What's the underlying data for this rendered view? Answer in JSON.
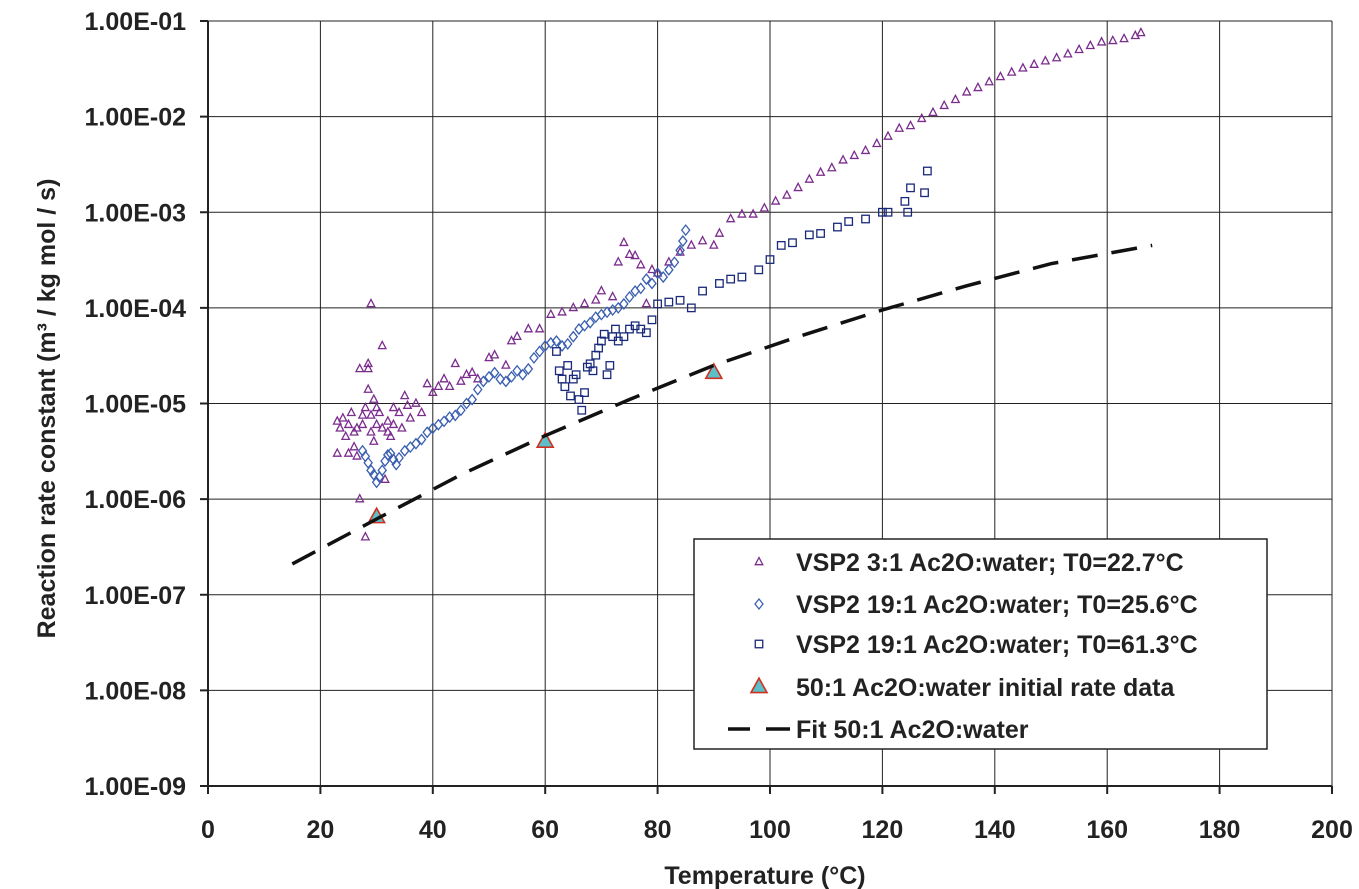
{
  "chart_data": {
    "type": "scatter",
    "title": "",
    "xlabel": "Temperature (°C)",
    "ylabel": "Reaction rate constant (m³ / kg mol / s)",
    "xlim": [
      0,
      200
    ],
    "ylim": [
      1e-09,
      0.1
    ],
    "yscale": "log",
    "x_ticks": [
      0,
      20,
      40,
      60,
      80,
      100,
      120,
      140,
      160,
      180,
      200
    ],
    "x_tick_labels": [
      "0",
      "20",
      "40",
      "60",
      "80",
      "100",
      "120",
      "140",
      "160",
      "180",
      "200"
    ],
    "y_ticks": [
      1e-09,
      1e-08,
      1e-07,
      1e-06,
      1e-05,
      0.0001,
      0.001,
      0.01,
      0.1
    ],
    "y_tick_labels": [
      "1.00E-09",
      "1.00E-08",
      "1.00E-07",
      "1.00E-06",
      "1.00E-05",
      "1.00E-04",
      "1.00E-03",
      "1.00E-02",
      "1.00E-01"
    ],
    "grid": true,
    "legend_position": "bottom-right",
    "series": [
      {
        "name": "VSP2 3:1 Ac2O:water; T0=22.7°C",
        "marker": "triangle-open",
        "color": "#7b2d8e",
        "points": [
          [
            23,
            3e-06
          ],
          [
            23,
            6.5e-06
          ],
          [
            23.5,
            5.5e-06
          ],
          [
            24,
            7e-06
          ],
          [
            24.5,
            4.5e-06
          ],
          [
            25,
            3e-06
          ],
          [
            25,
            6e-06
          ],
          [
            25.5,
            8e-06
          ],
          [
            26,
            5e-06
          ],
          [
            26,
            3.5e-06
          ],
          [
            26.5,
            2.8e-06
          ],
          [
            26.5,
            5.5e-06
          ],
          [
            27,
            2.3e-05
          ],
          [
            27,
            1e-06
          ],
          [
            27.5,
            6e-06
          ],
          [
            27.5,
            7.5e-06
          ],
          [
            28,
            4e-07
          ],
          [
            28,
            9e-06
          ],
          [
            28.5,
            2.6e-05
          ],
          [
            28.5,
            2.3e-05
          ],
          [
            28.5,
            1.4e-05
          ],
          [
            29,
            0.00011
          ],
          [
            29,
            5e-06
          ],
          [
            29,
            7.5e-06
          ],
          [
            29.5,
            4e-06
          ],
          [
            29.5,
            1.1e-05
          ],
          [
            30,
            9e-06
          ],
          [
            30,
            6e-06
          ],
          [
            30.5,
            8e-06
          ],
          [
            31,
            4e-05
          ],
          [
            31,
            5.5e-06
          ],
          [
            31.5,
            1.6e-06
          ],
          [
            32,
            5e-06
          ],
          [
            32,
            6.5e-06
          ],
          [
            32.5,
            4.5e-06
          ],
          [
            33,
            9e-06
          ],
          [
            33,
            6e-06
          ],
          [
            34,
            8e-06
          ],
          [
            34.5,
            5.5e-06
          ],
          [
            35,
            1.2e-05
          ],
          [
            35.5,
            9.5e-06
          ],
          [
            36,
            7e-06
          ],
          [
            37,
            1e-05
          ],
          [
            38,
            8e-06
          ],
          [
            39,
            1.6e-05
          ],
          [
            40,
            1.3e-05
          ],
          [
            41,
            1.5e-05
          ],
          [
            42,
            1.8e-05
          ],
          [
            43,
            1.5e-05
          ],
          [
            44,
            2.6e-05
          ],
          [
            45,
            1.7e-05
          ],
          [
            46,
            2e-05
          ],
          [
            47,
            2.1e-05
          ],
          [
            48,
            1.8e-05
          ],
          [
            50,
            3e-05
          ],
          [
            51,
            3.2e-05
          ],
          [
            53,
            2.5e-05
          ],
          [
            54,
            4.5e-05
          ],
          [
            55,
            5e-05
          ],
          [
            57,
            6e-05
          ],
          [
            59,
            6e-05
          ],
          [
            61,
            8.5e-05
          ],
          [
            63,
            9e-05
          ],
          [
            65,
            0.0001
          ],
          [
            67,
            0.00011
          ],
          [
            69,
            0.00012
          ],
          [
            70,
            0.00015
          ],
          [
            72,
            0.00013
          ],
          [
            73,
            0.0003
          ],
          [
            74,
            0.00048
          ],
          [
            75,
            0.00036
          ],
          [
            76,
            0.00035
          ],
          [
            77,
            0.00028
          ],
          [
            78,
            0.00011
          ],
          [
            79,
            0.00025
          ],
          [
            80,
            0.00023
          ],
          [
            82,
            0.0003
          ],
          [
            84,
            0.00038
          ],
          [
            86,
            0.00045
          ],
          [
            88,
            0.0005
          ],
          [
            90,
            0.00045
          ],
          [
            91,
            0.0006
          ],
          [
            93,
            0.00085
          ],
          [
            95,
            0.00095
          ],
          [
            97,
            0.00095
          ],
          [
            99,
            0.0011
          ],
          [
            101,
            0.0013
          ],
          [
            103,
            0.0015
          ],
          [
            105,
            0.0018
          ],
          [
            107,
            0.0022
          ],
          [
            109,
            0.0026
          ],
          [
            111,
            0.0029
          ],
          [
            113,
            0.0035
          ],
          [
            115,
            0.0039
          ],
          [
            117,
            0.0044
          ],
          [
            119,
            0.0052
          ],
          [
            121,
            0.0062
          ],
          [
            123,
            0.0075
          ],
          [
            125,
            0.008
          ],
          [
            127,
            0.0095
          ],
          [
            129,
            0.011
          ],
          [
            131,
            0.013
          ],
          [
            133,
            0.015
          ],
          [
            135,
            0.018
          ],
          [
            137,
            0.02
          ],
          [
            139,
            0.023
          ],
          [
            141,
            0.026
          ],
          [
            143,
            0.029
          ],
          [
            145,
            0.032
          ],
          [
            147,
            0.035
          ],
          [
            149,
            0.038
          ],
          [
            151,
            0.041
          ],
          [
            153,
            0.045
          ],
          [
            155,
            0.05
          ],
          [
            157,
            0.055
          ],
          [
            159,
            0.06
          ],
          [
            161,
            0.062
          ],
          [
            163,
            0.065
          ],
          [
            165,
            0.07
          ],
          [
            166,
            0.075
          ]
        ]
      },
      {
        "name": "VSP2 19:1 Ac2O:water; T0=25.6°C",
        "marker": "diamond-open",
        "color": "#3a5fb0",
        "points": [
          [
            27.5,
            3.2e-06
          ],
          [
            28,
            2.8e-06
          ],
          [
            28.5,
            2.4e-06
          ],
          [
            29,
            2e-06
          ],
          [
            29.5,
            1.8e-06
          ],
          [
            30,
            1.5e-06
          ],
          [
            30.5,
            1.7e-06
          ],
          [
            31,
            2e-06
          ],
          [
            31.5,
            2.5e-06
          ],
          [
            32,
            2.9e-06
          ],
          [
            32.5,
            3e-06
          ],
          [
            33,
            2.6e-06
          ],
          [
            33.5,
            2.3e-06
          ],
          [
            34,
            2.7e-06
          ],
          [
            35,
            3.2e-06
          ],
          [
            36,
            3.5e-06
          ],
          [
            37,
            3.8e-06
          ],
          [
            38,
            4.2e-06
          ],
          [
            39,
            5e-06
          ],
          [
            40,
            5.5e-06
          ],
          [
            41,
            6e-06
          ],
          [
            42,
            6.5e-06
          ],
          [
            43,
            7.2e-06
          ],
          [
            44,
            7.5e-06
          ],
          [
            45,
            8.5e-06
          ],
          [
            46,
            1e-05
          ],
          [
            47,
            1.1e-05
          ],
          [
            48,
            1.4e-05
          ],
          [
            49,
            1.7e-05
          ],
          [
            50,
            1.9e-05
          ],
          [
            51,
            2.1e-05
          ],
          [
            52,
            1.8e-05
          ],
          [
            53,
            1.7e-05
          ],
          [
            54,
            1.9e-05
          ],
          [
            55,
            2.2e-05
          ],
          [
            56,
            2e-05
          ],
          [
            57,
            2.3e-05
          ],
          [
            58,
            3e-05
          ],
          [
            59,
            3.5e-05
          ],
          [
            60,
            4e-05
          ],
          [
            61,
            4.3e-05
          ],
          [
            62,
            4.5e-05
          ],
          [
            63,
            4e-05
          ],
          [
            64,
            4.2e-05
          ],
          [
            65,
            5e-05
          ],
          [
            66,
            6e-05
          ],
          [
            67,
            6.5e-05
          ],
          [
            68,
            7e-05
          ],
          [
            69,
            8e-05
          ],
          [
            70,
            8.5e-05
          ],
          [
            71,
            9e-05
          ],
          [
            72,
            9.5e-05
          ],
          [
            73,
            0.0001
          ],
          [
            74,
            0.00011
          ],
          [
            75,
            0.00013
          ],
          [
            76,
            0.00015
          ],
          [
            77,
            0.00016
          ],
          [
            78,
            0.0002
          ],
          [
            79,
            0.00018
          ],
          [
            80,
            0.00023
          ],
          [
            81,
            0.00021
          ],
          [
            82,
            0.00025
          ],
          [
            83,
            0.0003
          ],
          [
            84,
            0.0004
          ],
          [
            84.5,
            0.0005
          ],
          [
            85,
            0.00065
          ]
        ]
      },
      {
        "name": "VSP2 19:1 Ac2O:water; T0=61.3°C",
        "marker": "square-open",
        "color": "#1a2a7a",
        "points": [
          [
            62,
            3.5e-05
          ],
          [
            62.5,
            2.2e-05
          ],
          [
            63,
            1.8e-05
          ],
          [
            63.5,
            1.5e-05
          ],
          [
            64,
            2.5e-05
          ],
          [
            64.5,
            1.2e-05
          ],
          [
            65,
            1.8e-05
          ],
          [
            65.5,
            2e-05
          ],
          [
            66,
            1.1e-05
          ],
          [
            66.5,
            8.5e-06
          ],
          [
            67,
            1.3e-05
          ],
          [
            67.5,
            2.4e-05
          ],
          [
            68,
            2.6e-05
          ],
          [
            68.5,
            2.2e-05
          ],
          [
            69,
            3.2e-05
          ],
          [
            69.5,
            3.8e-05
          ],
          [
            70,
            4.5e-05
          ],
          [
            70.5,
            5.3e-05
          ],
          [
            71,
            2e-05
          ],
          [
            71.5,
            2.5e-05
          ],
          [
            72,
            5e-05
          ],
          [
            72.5,
            6e-05
          ],
          [
            73,
            4.5e-05
          ],
          [
            74,
            5e-05
          ],
          [
            75,
            6e-05
          ],
          [
            76,
            6.5e-05
          ],
          [
            77,
            6e-05
          ],
          [
            78,
            5.5e-05
          ],
          [
            79,
            7.5e-05
          ],
          [
            80,
            0.00011
          ],
          [
            82,
            0.000115
          ],
          [
            84,
            0.00012
          ],
          [
            86,
            0.0001
          ],
          [
            88,
            0.00015
          ],
          [
            91,
            0.00018
          ],
          [
            93,
            0.0002
          ],
          [
            95,
            0.00021
          ],
          [
            98,
            0.00025
          ],
          [
            100,
            0.00032
          ],
          [
            102,
            0.00045
          ],
          [
            104,
            0.00048
          ],
          [
            107,
            0.00058
          ],
          [
            109,
            0.0006
          ],
          [
            112,
            0.0007
          ],
          [
            114,
            0.0008
          ],
          [
            117,
            0.00085
          ],
          [
            120,
            0.001
          ],
          [
            121,
            0.001
          ],
          [
            124,
            0.0013
          ],
          [
            124.5,
            0.001
          ],
          [
            125,
            0.0018
          ],
          [
            127.5,
            0.0016
          ],
          [
            128,
            0.0027
          ]
        ]
      },
      {
        "name": "50:1 Ac2O:water initial rate data",
        "marker": "triangle-filled",
        "color": "#5bc0c8",
        "edge_color": "#d03020",
        "points": [
          [
            30,
            6.5e-07
          ],
          [
            60,
            4e-06
          ],
          [
            90,
            2.1e-05
          ]
        ]
      },
      {
        "name": "Fit 50:1 Ac2O:water",
        "marker": "line-dashed",
        "color": "#111111",
        "points": [
          [
            15,
            2.1e-07
          ],
          [
            30,
            6.2e-07
          ],
          [
            45,
            1.8e-06
          ],
          [
            60,
            4.6e-06
          ],
          [
            75,
            1.1e-05
          ],
          [
            90,
            2.5e-05
          ],
          [
            105,
            5e-05
          ],
          [
            120,
            9.5e-05
          ],
          [
            135,
            0.00017
          ],
          [
            150,
            0.00029
          ],
          [
            168,
            0.00045
          ]
        ]
      }
    ]
  }
}
